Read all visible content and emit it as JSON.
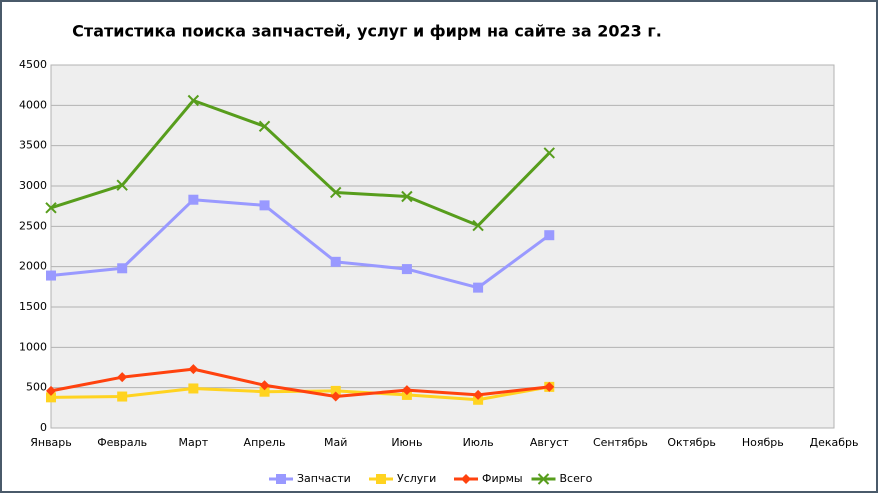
{
  "chart_data": {
    "type": "line",
    "title": "Статистика поиска запчастей, услуг и фирм на сайте за 2023 г.",
    "categories": [
      "Январь",
      "Февраль",
      "Март",
      "Апрель",
      "Май",
      "Июнь",
      "Июль",
      "Август",
      "Сентябрь",
      "Октябрь",
      "Ноябрь",
      "Декабрь"
    ],
    "series": [
      {
        "name": "Запчасти",
        "color": "#9999ff",
        "marker": "square",
        "values": [
          1890,
          1980,
          2830,
          2760,
          2060,
          1970,
          1740,
          2390,
          null,
          null,
          null,
          null
        ]
      },
      {
        "name": "Услуги",
        "color": "#ffd320",
        "marker": "square",
        "values": [
          380,
          390,
          490,
          450,
          460,
          410,
          350,
          510,
          null,
          null,
          null,
          null
        ]
      },
      {
        "name": "Фирмы",
        "color": "#ff420e",
        "marker": "diamond",
        "values": [
          460,
          630,
          730,
          530,
          390,
          470,
          410,
          510,
          null,
          null,
          null,
          null
        ]
      },
      {
        "name": "Всего",
        "color": "#579d1c",
        "marker": "x",
        "values": [
          2730,
          3010,
          4060,
          3740,
          2920,
          2870,
          2510,
          3410,
          null,
          null,
          null,
          null
        ]
      }
    ],
    "ylim": [
      0,
      4500
    ],
    "yticks": [
      0,
      500,
      1000,
      1500,
      2000,
      2500,
      3000,
      3500,
      4000,
      4500
    ],
    "grid": true,
    "legend": "bottom"
  }
}
